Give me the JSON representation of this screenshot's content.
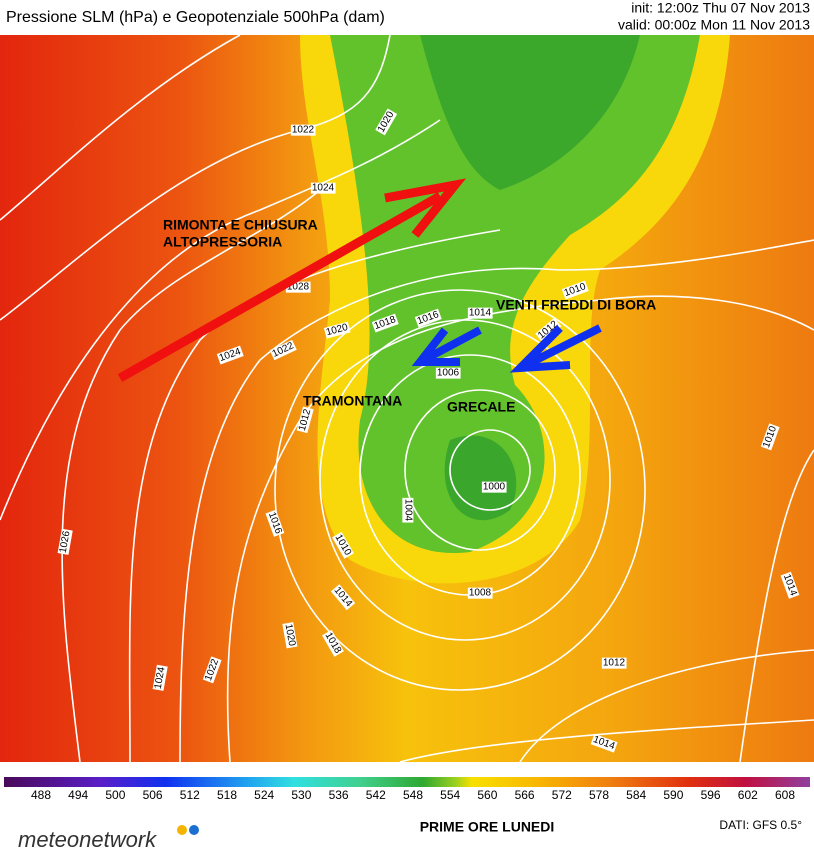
{
  "header": {
    "title": "Pressione SLM (hPa) e Geopotenziale 500hPa (dam)",
    "init": "init: 12:00z Thu 07 Nov 2013",
    "valid": "valid: 00:00z Mon 11 Nov 2013"
  },
  "map": {
    "annotations": [
      "RIMONTA E CHIUSURA",
      "ALTOPRESSORIA",
      "VENTI FREDDI DI BORA",
      "TRAMONTANA",
      "GRECALE"
    ],
    "isobar_labels": [
      1022,
      1020,
      1024,
      1028,
      1020,
      1018,
      1016,
      1014,
      1010,
      1024,
      1022,
      1012,
      1006,
      1012,
      1000,
      1004,
      1016,
      1010,
      1026,
      1014,
      1008,
      1020,
      1018,
      1024,
      1022,
      1012,
      1014,
      1010,
      1014
    ]
  },
  "colorbar": {
    "ticks": [
      488,
      494,
      500,
      506,
      512,
      518,
      524,
      530,
      536,
      542,
      548,
      554,
      560,
      566,
      572,
      578,
      584,
      590,
      596,
      602,
      608
    ]
  },
  "footer": {
    "logo": "meteonetwork",
    "caption": "PRIME ORE LUNEDI",
    "source": "DATI: GFS 0.5°"
  }
}
